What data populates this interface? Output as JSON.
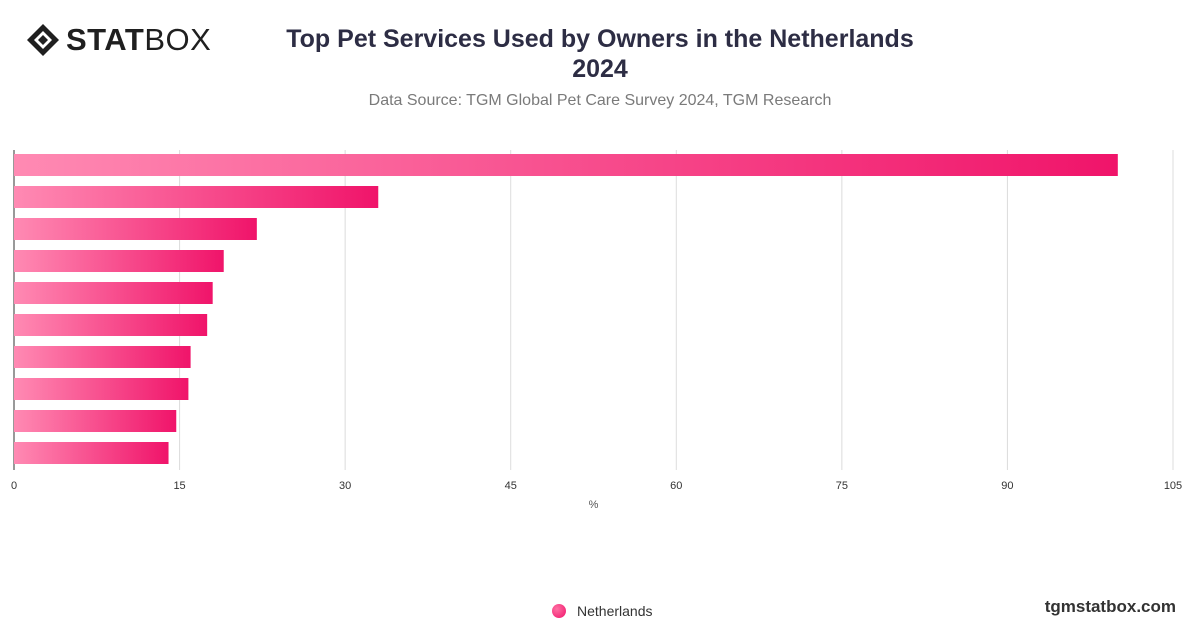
{
  "brand": {
    "logo_bold": "STAT",
    "logo_light": "BOX",
    "watermark": "tgmstatbox.com"
  },
  "header": {
    "title_line1": "Top Pet Services Used by Owners in the Netherlands",
    "title_line2": "2024",
    "subtitle": "Data Source: TGM Global Pet Care Survey 2024, TGM Research"
  },
  "colors": {
    "bar_start": "#ff8ab3",
    "bar_end": "#f0146a",
    "grid": "#dcdcdc"
  },
  "chart_data": {
    "type": "bar",
    "orientation": "horizontal",
    "categories": [
      "",
      "",
      "",
      "",
      "",
      "",
      "",
      "",
      "",
      ""
    ],
    "series": [
      {
        "name": "Netherlands",
        "values": [
          100,
          33,
          22,
          19,
          18,
          17.5,
          16,
          15.8,
          14.7,
          14
        ]
      }
    ],
    "xlabel": "%",
    "xlim": [
      0,
      105
    ],
    "xticks": [
      0,
      15,
      30,
      45,
      60,
      75,
      90,
      105
    ],
    "grid": true,
    "legend": "bottom-center"
  },
  "legend": {
    "label": "Netherlands"
  }
}
